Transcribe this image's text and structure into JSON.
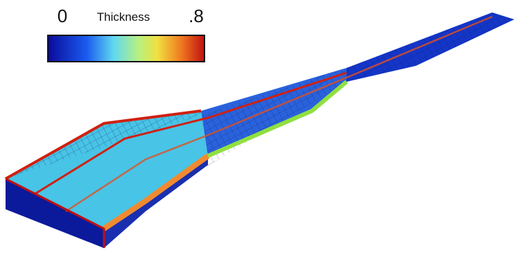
{
  "colorbar": {
    "title": "Thickness",
    "min_label": "0",
    "max_label": ".8"
  }
}
